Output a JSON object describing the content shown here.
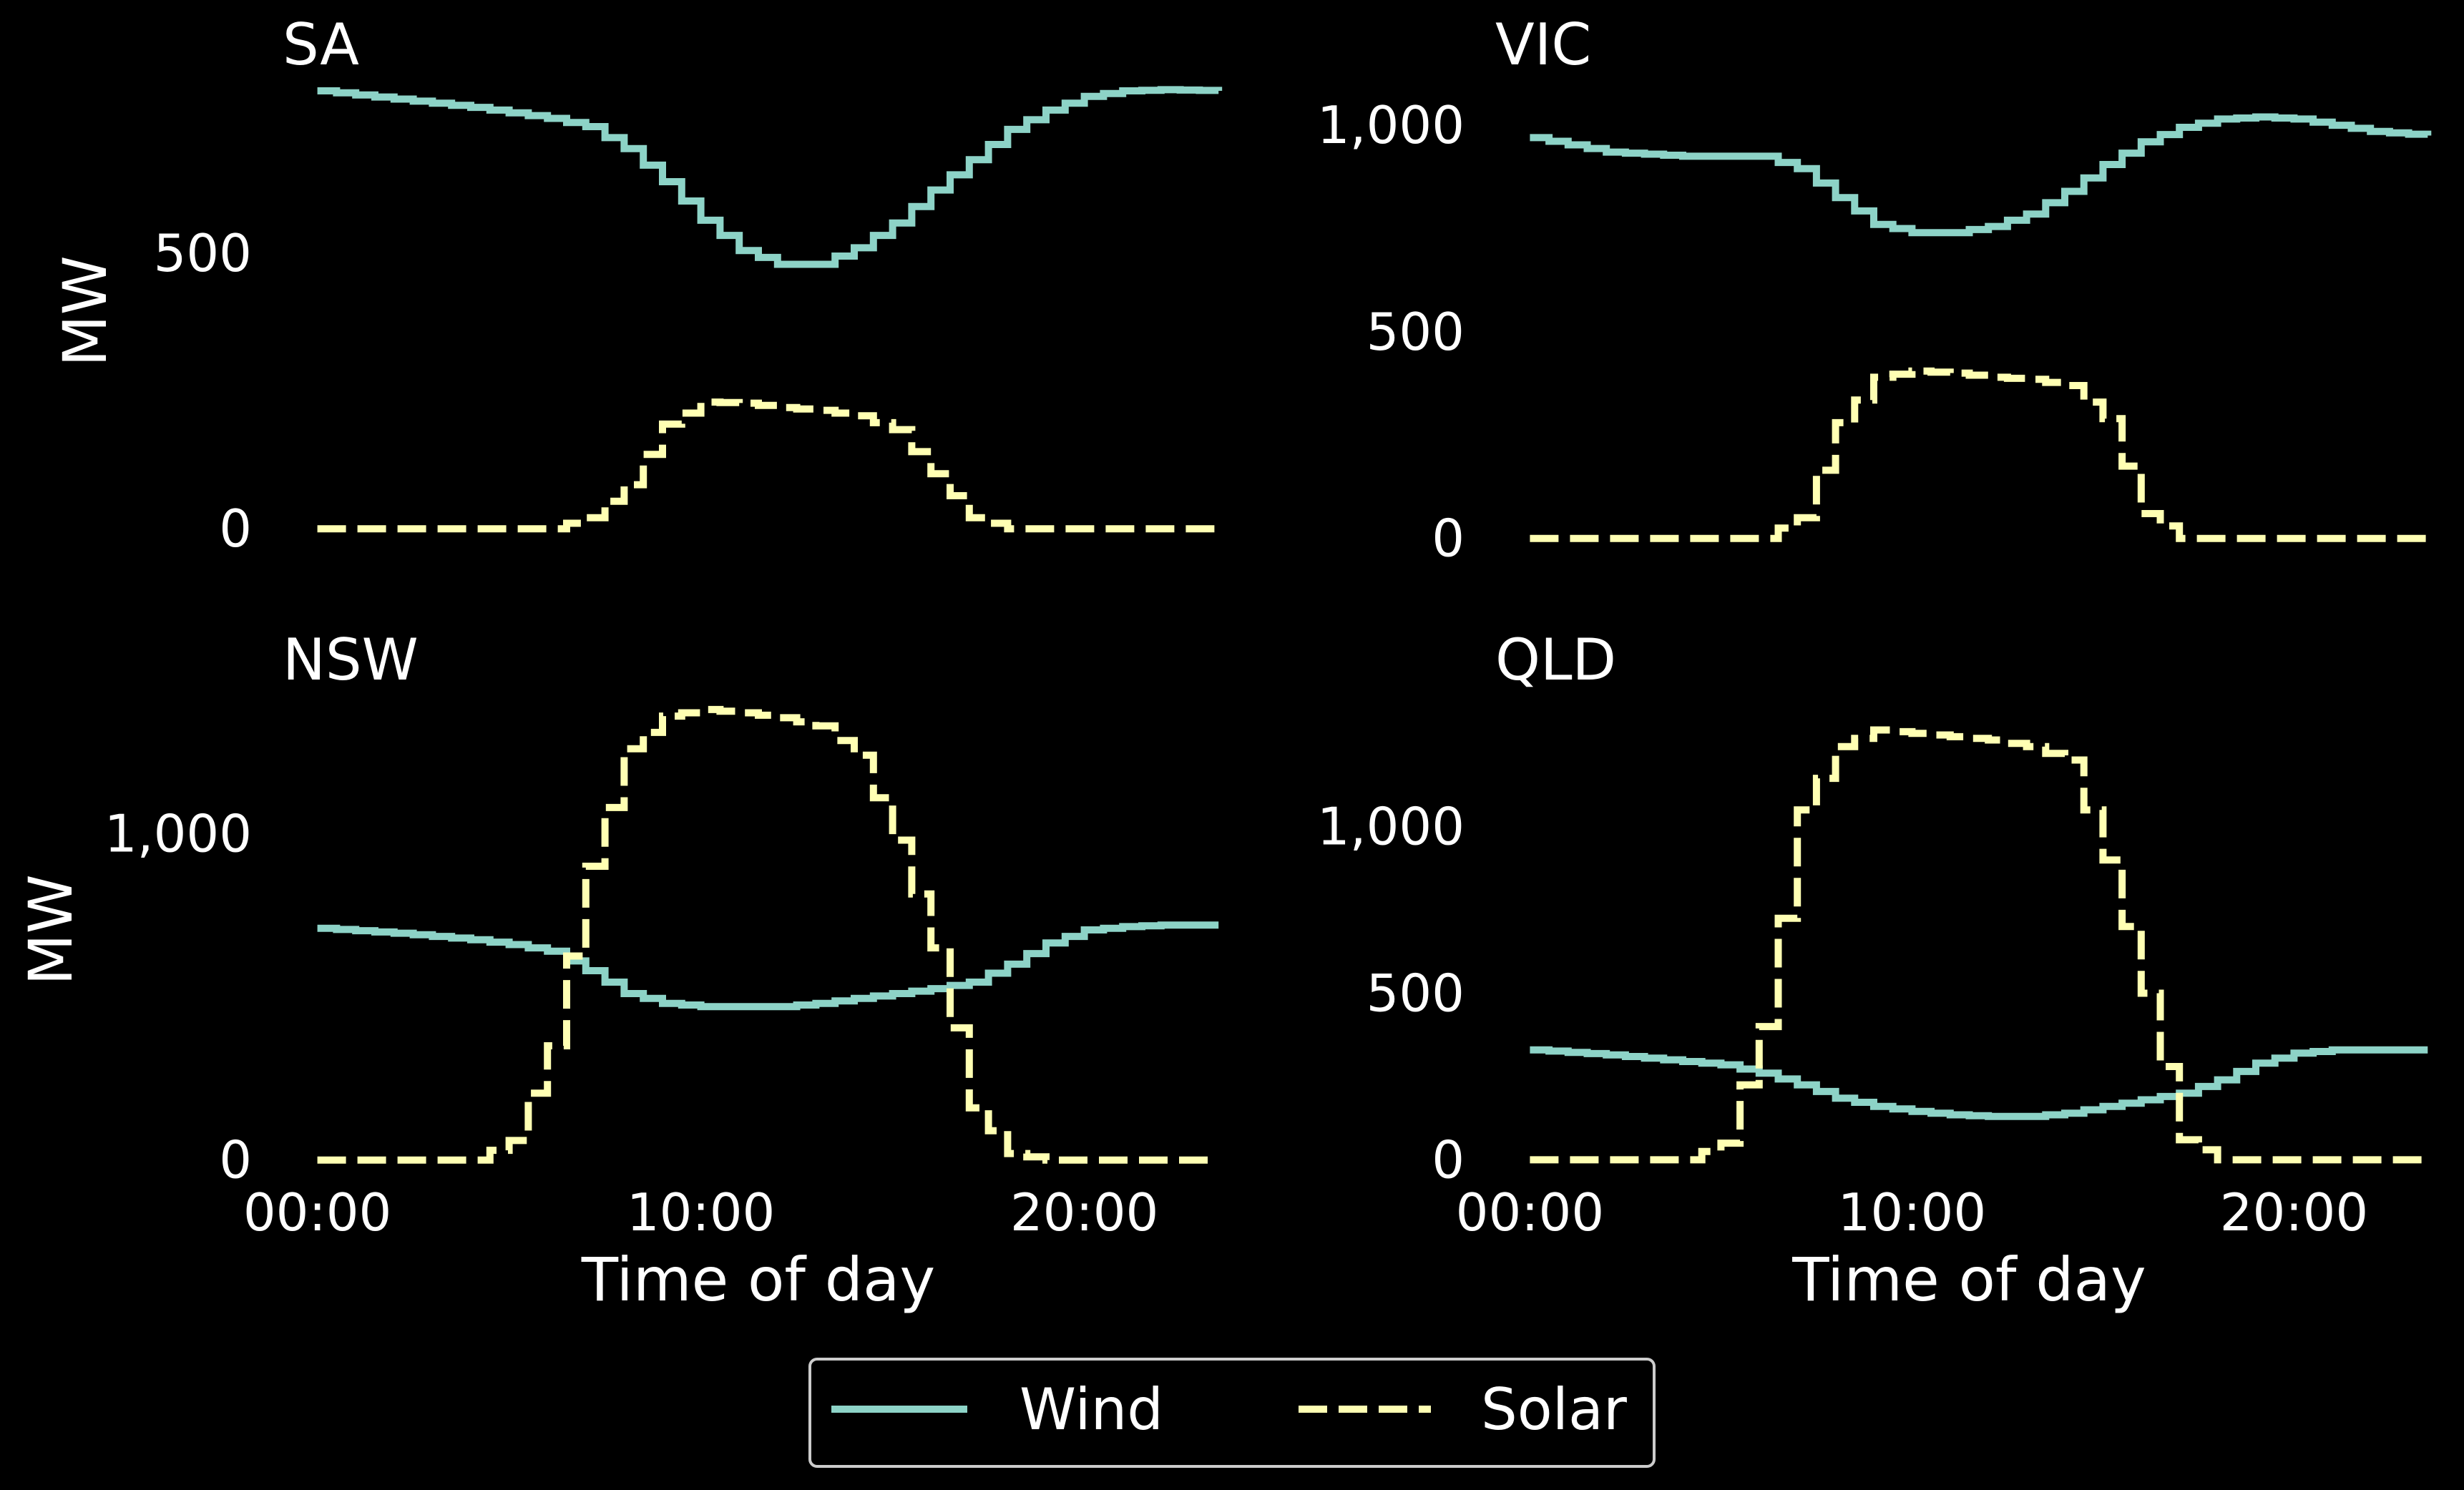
{
  "colors": {
    "background": "#000000",
    "text": "#ffffff",
    "wind": "#8dd3c7",
    "solar": "#ffffb3",
    "legend_border": "#cccccc"
  },
  "legend": {
    "placement": "bottom-center",
    "items": [
      {
        "label": "Wind",
        "style": "solid"
      },
      {
        "label": "Solar",
        "style": "dashed"
      }
    ]
  },
  "chart_data": [
    {
      "type": "line",
      "title": "SA",
      "xlabel": "",
      "ylabel": "MW",
      "xlim": [
        -1,
        24
      ],
      "ylim": [
        -40,
        830
      ],
      "yticks": [
        {
          "v": 0,
          "label": "0"
        },
        {
          "v": 500,
          "label": "500"
        }
      ],
      "xticks": [],
      "x": [
        0,
        2,
        4,
        6,
        7,
        8,
        9,
        10,
        11,
        12,
        13,
        14,
        15,
        16,
        17,
        18,
        19,
        20,
        21,
        22,
        23.5
      ],
      "series": [
        {
          "name": "Wind",
          "style": "solid",
          "values": [
            795,
            780,
            765,
            745,
            730,
            690,
            630,
            560,
            505,
            480,
            480,
            510,
            555,
            615,
            670,
            725,
            760,
            785,
            795,
            797,
            795
          ]
        },
        {
          "name": "Solar",
          "style": "dashed",
          "values": [
            0,
            0,
            0,
            0,
            20,
            80,
            190,
            230,
            228,
            220,
            215,
            205,
            180,
            100,
            20,
            0,
            0,
            0,
            0,
            0,
            0
          ]
        }
      ]
    },
    {
      "type": "line",
      "title": "VIC",
      "xlabel": "",
      "ylabel": "",
      "xlim": [
        -1,
        24
      ],
      "ylim": [
        -30,
        1130
      ],
      "yticks": [
        {
          "v": 0,
          "label": "0"
        },
        {
          "v": 500,
          "label": "500"
        },
        {
          "v": 1000,
          "label": "1,000"
        }
      ],
      "xticks": [],
      "x": [
        0,
        2,
        4,
        6,
        7,
        8,
        9,
        10,
        11,
        12,
        13,
        14,
        15,
        16,
        17,
        18,
        19,
        20,
        21,
        22,
        23.5
      ],
      "series": [
        {
          "name": "Wind",
          "style": "solid",
          "values": [
            970,
            935,
            925,
            925,
            895,
            825,
            760,
            740,
            740,
            755,
            785,
            840,
            905,
            960,
            995,
            1015,
            1020,
            1015,
            1000,
            985,
            975
          ]
        },
        {
          "name": "Solar",
          "style": "dashed",
          "values": [
            0,
            0,
            0,
            0,
            50,
            280,
            390,
            405,
            400,
            390,
            385,
            370,
            290,
            60,
            0,
            0,
            0,
            0,
            0,
            0,
            0
          ]
        }
      ]
    },
    {
      "type": "line",
      "title": "NSW",
      "xlabel": "Time of day",
      "ylabel": "MW",
      "xlim": [
        -1,
        24
      ],
      "ylim": [
        -40,
        1450
      ],
      "yticks": [
        {
          "v": 0,
          "label": "0"
        },
        {
          "v": 1000,
          "label": "1,000"
        }
      ],
      "xticks": [
        {
          "v": 0,
          "label": "00:00"
        },
        {
          "v": 10,
          "label": "10:00"
        },
        {
          "v": 20,
          "label": "20:00"
        }
      ],
      "x": [
        0,
        2,
        4,
        5,
        6,
        7,
        8,
        9,
        10,
        11,
        12,
        13,
        14,
        15,
        16,
        17,
        18,
        19,
        20,
        21,
        22,
        23.5
      ],
      "series": [
        {
          "name": "Wind",
          "style": "solid",
          "values": [
            710,
            695,
            675,
            660,
            640,
            580,
            510,
            480,
            470,
            470,
            470,
            480,
            495,
            510,
            525,
            545,
            600,
            665,
            705,
            715,
            720,
            720
          ]
        },
        {
          "name": "Solar",
          "style": "dashed",
          "values": [
            0,
            0,
            0,
            60,
            350,
            900,
            1260,
            1360,
            1380,
            1370,
            1355,
            1330,
            1240,
            980,
            650,
            160,
            20,
            0,
            0,
            0,
            0,
            0
          ]
        }
      ]
    },
    {
      "type": "line",
      "title": "QLD",
      "xlabel": "Time of day",
      "ylabel": "",
      "xlim": [
        -1,
        24
      ],
      "ylim": [
        -40,
        1420
      ],
      "yticks": [
        {
          "v": 0,
          "label": "0"
        },
        {
          "v": 500,
          "label": "500"
        },
        {
          "v": 1000,
          "label": "1,000"
        }
      ],
      "xticks": [
        {
          "v": 0,
          "label": "00:00"
        },
        {
          "v": 10,
          "label": "10:00"
        },
        {
          "v": 20,
          "label": "20:00"
        }
      ],
      "x": [
        0,
        2,
        4,
        5,
        6,
        7,
        8,
        9,
        10,
        11,
        12,
        13,
        14,
        15,
        16,
        17,
        18,
        19,
        20,
        21,
        22,
        23.5
      ],
      "series": [
        {
          "name": "Wind",
          "style": "solid",
          "values": [
            330,
            315,
            295,
            285,
            260,
            225,
            185,
            160,
            145,
            135,
            130,
            130,
            140,
            160,
            180,
            200,
            240,
            290,
            320,
            330,
            330,
            330
          ]
        },
        {
          "name": "Solar",
          "style": "dashed",
          "values": [
            0,
            0,
            0,
            50,
            400,
            1050,
            1240,
            1290,
            1280,
            1270,
            1260,
            1240,
            1200,
            900,
            500,
            60,
            0,
            0,
            0,
            0,
            0,
            0
          ]
        }
      ]
    }
  ]
}
